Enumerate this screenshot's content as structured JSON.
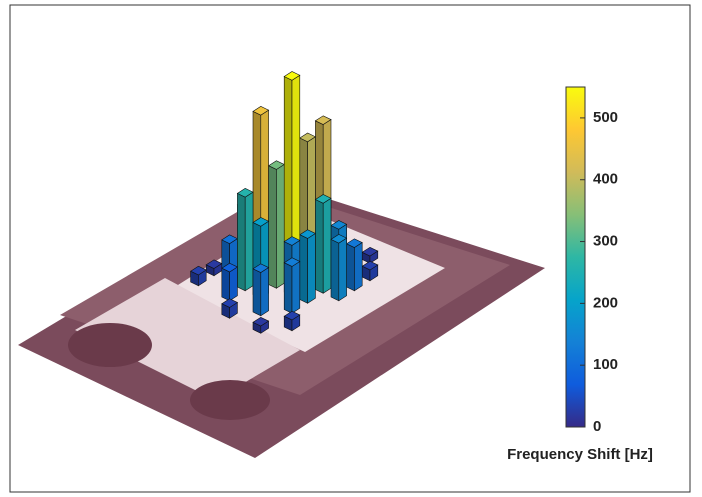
{
  "chart_data": {
    "type": "bar3d",
    "x": [
      6,
      6,
      5,
      5,
      5,
      4,
      4,
      4,
      3,
      3,
      3,
      2,
      2,
      2,
      1,
      1,
      1,
      0,
      0,
      6,
      7,
      2,
      1,
      5,
      4,
      3,
      5,
      4,
      3,
      2,
      5
    ],
    "y": [
      2,
      4,
      1,
      5,
      6,
      1,
      5,
      6,
      1,
      4,
      5,
      1,
      3,
      5,
      2,
      4,
      6,
      3,
      5,
      6,
      5,
      0,
      0,
      0,
      3,
      2,
      4,
      4,
      3,
      2,
      3
    ],
    "values": [
      60,
      90,
      40,
      150,
      120,
      120,
      250,
      160,
      180,
      140,
      180,
      110,
      200,
      130,
      80,
      120,
      30,
      30,
      20,
      30,
      20,
      20,
      30,
      30,
      550,
      460,
      420,
      400,
      330,
      260,
      180
    ],
    "colormap": [
      "#352a87",
      "#0f5cdd",
      "#1481d6",
      "#06a4ca",
      "#2eb7a4",
      "#87bf77",
      "#d1bb59",
      "#fec832",
      "#f9fb0e"
    ],
    "clim": [
      0,
      550
    ],
    "cticks": [
      0,
      100,
      200,
      300,
      400,
      500
    ],
    "colorbar_label": "Frequency Shift [Hz]"
  }
}
